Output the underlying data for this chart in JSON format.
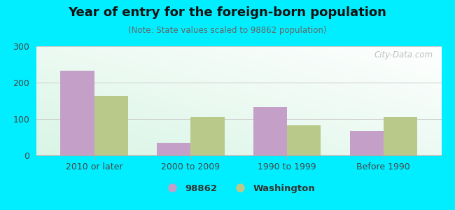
{
  "title": "Year of entry for the foreign-born population",
  "subtitle": "(Note: State values scaled to 98862 population)",
  "categories": [
    "2010 or later",
    "2000 to 2009",
    "1990 to 1999",
    "Before 1990"
  ],
  "values_98862": [
    232,
    35,
    133,
    68
  ],
  "values_washington": [
    163,
    105,
    83,
    105
  ],
  "color_98862": "#c4a0c8",
  "color_washington": "#b8c98a",
  "background_color": "#00eeff",
  "ylim": [
    0,
    300
  ],
  "yticks": [
    0,
    100,
    200,
    300
  ],
  "bar_width": 0.35,
  "legend_label_98862": "98862",
  "legend_label_washington": "Washington",
  "watermark": "City-Data.com",
  "title_fontsize": 13,
  "subtitle_fontsize": 8.5,
  "tick_fontsize": 9
}
